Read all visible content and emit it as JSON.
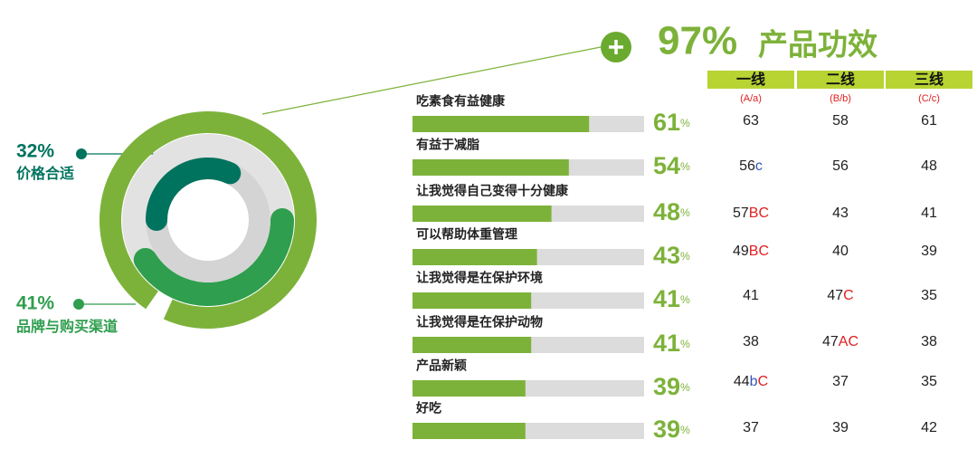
{
  "chart_data": [
    {
      "type": "radial",
      "categories": [
        "产品功效",
        "品牌与购买渠道",
        "价格合适"
      ],
      "values": [
        97,
        41,
        32
      ],
      "value_labels": [
        "97%",
        "41%",
        "32%"
      ],
      "colors": [
        "#7db23a",
        "#2f9e4e",
        "#00735e"
      ]
    },
    {
      "type": "bar",
      "categories": [
        "吃素食有益健康",
        "有益于减脂",
        "让我觉得自己变得十分健康",
        "可以帮助体重管理",
        "让我觉得是在保护环境",
        "让我觉得是在保护动物",
        "产品新颖",
        "好吃"
      ],
      "values": [
        61,
        54,
        48,
        43,
        41,
        41,
        39,
        39
      ],
      "value_labels": [
        "61%",
        "54%",
        "48%",
        "43%",
        "41%",
        "41%",
        "39%",
        "39%"
      ],
      "color": "#7db23a",
      "xlim": [
        0,
        80
      ]
    }
  ],
  "table": {
    "columns": [
      "一线",
      "二线",
      "三线"
    ],
    "subcolumns": [
      "(A/a)",
      "(B/b)",
      "(C/c)"
    ],
    "rows": [
      [
        {
          "v": 63
        },
        {
          "v": 58
        },
        {
          "v": 61
        }
      ],
      [
        {
          "v": 56,
          "sig": "c"
        },
        {
          "v": 56
        },
        {
          "v": 48
        }
      ],
      [
        {
          "v": 57,
          "sig": "BC"
        },
        {
          "v": 43
        },
        {
          "v": 41
        }
      ],
      [
        {
          "v": 49,
          "sig": "BC"
        },
        {
          "v": 40
        },
        {
          "v": 39
        }
      ],
      [
        {
          "v": 41
        },
        {
          "v": 47,
          "sig": "C"
        },
        {
          "v": 35
        }
      ],
      [
        {
          "v": 38
        },
        {
          "v": 47,
          "sig": "AC"
        },
        {
          "v": 38
        }
      ],
      [
        {
          "v": 44,
          "sig": "bC"
        },
        {
          "v": 37
        },
        {
          "v": 35
        }
      ],
      [
        {
          "v": 37
        },
        {
          "v": 39
        },
        {
          "v": 42
        }
      ]
    ]
  }
}
